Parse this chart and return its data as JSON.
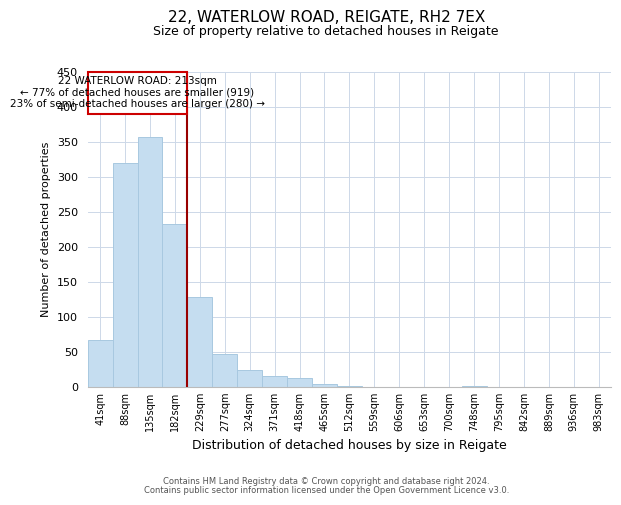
{
  "title": "22, WATERLOW ROAD, REIGATE, RH2 7EX",
  "subtitle": "Size of property relative to detached houses in Reigate",
  "xlabel": "Distribution of detached houses by size in Reigate",
  "ylabel": "Number of detached properties",
  "bar_color": "#c5ddf0",
  "bar_edge_color": "#a8c8e0",
  "bin_labels": [
    "41sqm",
    "88sqm",
    "135sqm",
    "182sqm",
    "229sqm",
    "277sqm",
    "324sqm",
    "371sqm",
    "418sqm",
    "465sqm",
    "512sqm",
    "559sqm",
    "606sqm",
    "653sqm",
    "700sqm",
    "748sqm",
    "795sqm",
    "842sqm",
    "889sqm",
    "936sqm",
    "983sqm"
  ],
  "bar_heights": [
    67,
    320,
    357,
    233,
    128,
    47,
    24,
    15,
    12,
    4,
    1,
    0,
    0,
    0,
    0,
    1,
    0,
    0,
    0,
    0,
    0
  ],
  "ylim": [
    0,
    450
  ],
  "yticks": [
    0,
    50,
    100,
    150,
    200,
    250,
    300,
    350,
    400,
    450
  ],
  "property_line_x": 3.5,
  "annotation_title": "22 WATERLOW ROAD: 213sqm",
  "annotation_line1": "← 77% of detached houses are smaller (919)",
  "annotation_line2": "23% of semi-detached houses are larger (280) →",
  "footer1": "Contains HM Land Registry data © Crown copyright and database right 2024.",
  "footer2": "Contains public sector information licensed under the Open Government Licence v3.0.",
  "background_color": "#ffffff",
  "grid_color": "#cdd8e8"
}
